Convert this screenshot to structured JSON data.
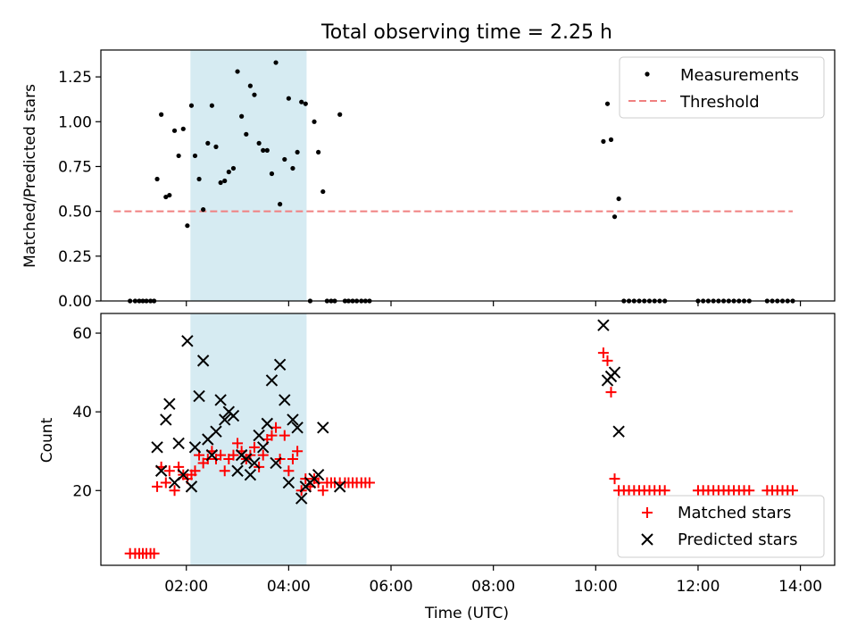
{
  "figure_title": "Total observing time = 2.25 h",
  "x_axis": {
    "label": "Time (UTC)",
    "range_hours": [
      0.33,
      14.67
    ],
    "ticks": [
      {
        "value": 2,
        "label": "02:00"
      },
      {
        "value": 4,
        "label": "04:00"
      },
      {
        "value": 6,
        "label": "06:00"
      },
      {
        "value": 8,
        "label": "08:00"
      },
      {
        "value": 10,
        "label": "10:00"
      },
      {
        "value": 12,
        "label": "12:00"
      },
      {
        "value": 14,
        "label": "14:00"
      }
    ]
  },
  "colors": {
    "measurements": "#000000",
    "threshold": "#f08080",
    "matched": "#ff0000",
    "predicted": "#000000",
    "shade": "#add8e6"
  },
  "chart_data": [
    {
      "type": "scatter",
      "ylabel": "Matched/Predicted stars",
      "ylim": [
        0,
        1.4
      ],
      "yticks": [
        {
          "value": 0,
          "label": "0.00"
        },
        {
          "value": 0.25,
          "label": "0.25"
        },
        {
          "value": 0.5,
          "label": "0.50"
        },
        {
          "value": 0.75,
          "label": "0.75"
        },
        {
          "value": 1.0,
          "label": "1.00"
        },
        {
          "value": 1.25,
          "label": "1.25"
        }
      ],
      "shaded_span": [
        2.08,
        4.35
      ],
      "legend_position": "top-right",
      "legend": [
        "Measurements",
        "Threshold"
      ],
      "threshold": {
        "name": "Threshold",
        "y": 0.5,
        "x_range": [
          0.58,
          13.85
        ]
      },
      "series": [
        {
          "name": "Measurements",
          "points": [
            [
              0.9,
              0
            ],
            [
              1.0,
              0
            ],
            [
              1.08,
              0
            ],
            [
              1.15,
              0
            ],
            [
              1.22,
              0
            ],
            [
              1.3,
              0
            ],
            [
              1.37,
              0
            ],
            [
              1.43,
              0.68
            ],
            [
              1.51,
              1.04
            ],
            [
              1.6,
              0.58
            ],
            [
              1.67,
              0.59
            ],
            [
              1.77,
              0.95
            ],
            [
              1.85,
              0.81
            ],
            [
              1.94,
              0.96
            ],
            [
              2.02,
              0.42
            ],
            [
              2.1,
              1.09
            ],
            [
              2.17,
              0.81
            ],
            [
              2.25,
              0.68
            ],
            [
              2.33,
              0.51
            ],
            [
              2.42,
              0.88
            ],
            [
              2.5,
              1.09
            ],
            [
              2.58,
              0.86
            ],
            [
              2.67,
              0.66
            ],
            [
              2.75,
              0.67
            ],
            [
              2.83,
              0.72
            ],
            [
              2.92,
              0.74
            ],
            [
              3.0,
              1.28
            ],
            [
              3.08,
              1.03
            ],
            [
              3.17,
              0.93
            ],
            [
              3.25,
              1.2
            ],
            [
              3.33,
              1.15
            ],
            [
              3.42,
              0.88
            ],
            [
              3.5,
              0.84
            ],
            [
              3.58,
              0.84
            ],
            [
              3.67,
              0.71
            ],
            [
              3.75,
              1.33
            ],
            [
              3.83,
              0.54
            ],
            [
              3.92,
              0.79
            ],
            [
              4.0,
              1.13
            ],
            [
              4.08,
              0.74
            ],
            [
              4.17,
              0.83
            ],
            [
              4.25,
              1.11
            ],
            [
              4.33,
              1.1
            ],
            [
              4.42,
              0.0
            ],
            [
              4.5,
              1.0
            ],
            [
              4.58,
              0.83
            ],
            [
              4.67,
              0.61
            ],
            [
              4.75,
              0
            ],
            [
              4.83,
              0
            ],
            [
              4.9,
              0
            ],
            [
              5.0,
              1.04
            ],
            [
              5.1,
              0
            ],
            [
              5.17,
              0
            ],
            [
              5.25,
              0
            ],
            [
              5.33,
              0
            ],
            [
              5.42,
              0
            ],
            [
              5.5,
              0
            ],
            [
              5.58,
              0
            ],
            [
              10.15,
              0.89
            ],
            [
              10.23,
              1.1
            ],
            [
              10.3,
              0.9
            ],
            [
              10.37,
              0.47
            ],
            [
              10.45,
              0.57
            ],
            [
              10.55,
              0
            ],
            [
              10.65,
              0
            ],
            [
              10.75,
              0
            ],
            [
              10.85,
              0
            ],
            [
              10.95,
              0
            ],
            [
              11.05,
              0
            ],
            [
              11.15,
              0
            ],
            [
              11.25,
              0
            ],
            [
              11.35,
              0
            ],
            [
              12.0,
              0
            ],
            [
              12.1,
              0
            ],
            [
              12.2,
              0
            ],
            [
              12.3,
              0
            ],
            [
              12.4,
              0
            ],
            [
              12.5,
              0
            ],
            [
              12.6,
              0
            ],
            [
              12.7,
              0
            ],
            [
              12.8,
              0
            ],
            [
              12.9,
              0
            ],
            [
              13.0,
              0
            ],
            [
              13.35,
              0
            ],
            [
              13.45,
              0
            ],
            [
              13.55,
              0
            ],
            [
              13.65,
              0
            ],
            [
              13.75,
              0
            ],
            [
              13.85,
              0
            ]
          ]
        }
      ]
    },
    {
      "type": "scatter",
      "ylabel": "Count",
      "xlabel": "Time (UTC)",
      "ylim": [
        1,
        65
      ],
      "yticks": [
        {
          "value": 20,
          "label": "20"
        },
        {
          "value": 40,
          "label": "40"
        },
        {
          "value": 60,
          "label": "60"
        }
      ],
      "shaded_span": [
        2.08,
        4.35
      ],
      "legend_position": "bottom-right",
      "legend": [
        "Matched stars",
        "Predicted stars"
      ],
      "series": [
        {
          "name": "Matched stars",
          "marker": "plus",
          "points": [
            [
              0.9,
              4
            ],
            [
              1.0,
              4
            ],
            [
              1.08,
              4
            ],
            [
              1.15,
              4
            ],
            [
              1.22,
              4
            ],
            [
              1.3,
              4
            ],
            [
              1.37,
              4
            ],
            [
              1.43,
              21
            ],
            [
              1.51,
              26
            ],
            [
              1.6,
              22
            ],
            [
              1.67,
              25
            ],
            [
              1.77,
              20
            ],
            [
              1.85,
              26
            ],
            [
              1.94,
              24
            ],
            [
              2.02,
              23
            ],
            [
              2.1,
              24
            ],
            [
              2.17,
              25
            ],
            [
              2.25,
              29
            ],
            [
              2.33,
              27
            ],
            [
              2.42,
              28
            ],
            [
              2.5,
              30
            ],
            [
              2.58,
              28
            ],
            [
              2.67,
              29
            ],
            [
              2.75,
              25
            ],
            [
              2.83,
              28
            ],
            [
              2.92,
              29
            ],
            [
              3.0,
              32
            ],
            [
              3.08,
              30
            ],
            [
              3.17,
              28
            ],
            [
              3.25,
              29
            ],
            [
              3.33,
              31
            ],
            [
              3.42,
              26
            ],
            [
              3.5,
              29
            ],
            [
              3.58,
              33
            ],
            [
              3.67,
              34
            ],
            [
              3.75,
              36
            ],
            [
              3.83,
              28
            ],
            [
              3.92,
              34
            ],
            [
              4.0,
              25
            ],
            [
              4.08,
              28
            ],
            [
              4.17,
              30
            ],
            [
              4.25,
              20
            ],
            [
              4.33,
              23
            ],
            [
              4.42,
              21
            ],
            [
              4.5,
              23
            ],
            [
              4.58,
              22
            ],
            [
              4.67,
              20
            ],
            [
              4.75,
              22
            ],
            [
              4.83,
              22
            ],
            [
              4.9,
              22
            ],
            [
              5.0,
              22
            ],
            [
              5.1,
              22
            ],
            [
              5.17,
              22
            ],
            [
              5.25,
              22
            ],
            [
              5.33,
              22
            ],
            [
              5.42,
              22
            ],
            [
              5.5,
              22
            ],
            [
              5.58,
              22
            ],
            [
              10.15,
              55
            ],
            [
              10.23,
              53
            ],
            [
              10.3,
              45
            ],
            [
              10.37,
              23
            ],
            [
              10.45,
              20
            ],
            [
              10.55,
              20
            ],
            [
              10.65,
              20
            ],
            [
              10.75,
              20
            ],
            [
              10.85,
              20
            ],
            [
              10.95,
              20
            ],
            [
              11.05,
              20
            ],
            [
              11.15,
              20
            ],
            [
              11.25,
              20
            ],
            [
              11.35,
              20
            ],
            [
              12.0,
              20
            ],
            [
              12.1,
              20
            ],
            [
              12.2,
              20
            ],
            [
              12.3,
              20
            ],
            [
              12.4,
              20
            ],
            [
              12.5,
              20
            ],
            [
              12.6,
              20
            ],
            [
              12.7,
              20
            ],
            [
              12.8,
              20
            ],
            [
              12.9,
              20
            ],
            [
              13.0,
              20
            ],
            [
              13.35,
              20
            ],
            [
              13.45,
              20
            ],
            [
              13.55,
              20
            ],
            [
              13.65,
              20
            ],
            [
              13.75,
              20
            ],
            [
              13.85,
              20
            ]
          ]
        },
        {
          "name": "Predicted stars",
          "marker": "x",
          "points": [
            [
              1.43,
              31
            ],
            [
              1.51,
              25
            ],
            [
              1.6,
              38
            ],
            [
              1.67,
              42
            ],
            [
              1.77,
              22
            ],
            [
              1.85,
              32
            ],
            [
              1.94,
              24
            ],
            [
              2.02,
              58
            ],
            [
              2.1,
              21
            ],
            [
              2.17,
              31
            ],
            [
              2.25,
              44
            ],
            [
              2.33,
              53
            ],
            [
              2.42,
              33
            ],
            [
              2.5,
              29
            ],
            [
              2.58,
              35
            ],
            [
              2.67,
              43
            ],
            [
              2.75,
              38
            ],
            [
              2.83,
              40
            ],
            [
              2.92,
              39
            ],
            [
              3.0,
              25
            ],
            [
              3.08,
              29
            ],
            [
              3.17,
              28
            ],
            [
              3.25,
              24
            ],
            [
              3.33,
              27
            ],
            [
              3.42,
              34
            ],
            [
              3.5,
              31
            ],
            [
              3.58,
              37
            ],
            [
              3.67,
              48
            ],
            [
              3.75,
              27
            ],
            [
              3.83,
              52
            ],
            [
              3.92,
              43
            ],
            [
              4.0,
              22
            ],
            [
              4.08,
              38
            ],
            [
              4.17,
              36
            ],
            [
              4.25,
              18
            ],
            [
              4.33,
              21
            ],
            [
              4.42,
              22
            ],
            [
              4.5,
              23
            ],
            [
              4.58,
              24
            ],
            [
              4.67,
              36
            ],
            [
              5.0,
              21
            ],
            [
              10.15,
              62
            ],
            [
              10.23,
              48
            ],
            [
              10.3,
              49
            ],
            [
              10.37,
              50
            ],
            [
              10.45,
              35
            ]
          ]
        }
      ]
    }
  ]
}
